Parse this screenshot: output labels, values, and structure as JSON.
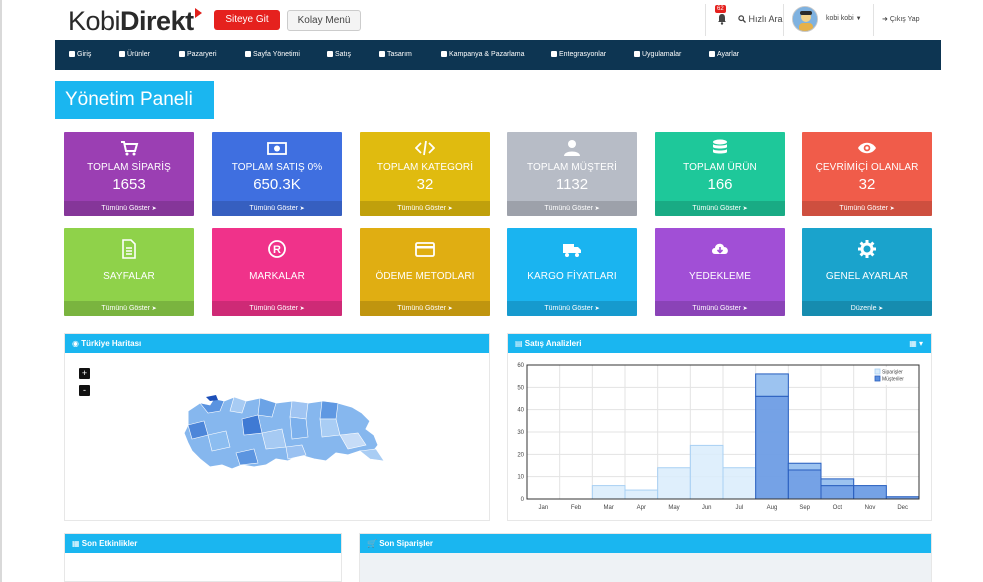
{
  "header": {
    "logo_part1": "Kobi",
    "logo_part2": "Direkt",
    "site_button": "Siteye Git",
    "easy_menu_button": "Kolay Menü",
    "notification_count": "62",
    "quick_search": "Hızlı Ara",
    "user_name": "kobi kobi",
    "logout": "Çıkış Yap"
  },
  "nav": {
    "items": [
      {
        "label": "Giriş",
        "icon": "home-icon"
      },
      {
        "label": "Ürünler",
        "icon": "tag-icon"
      },
      {
        "label": "Pazaryeri",
        "icon": "tags-icon"
      },
      {
        "label": "Sayfa Yönetimi",
        "icon": "book-icon"
      },
      {
        "label": "Satış",
        "icon": "cart-icon"
      },
      {
        "label": "Tasarım",
        "icon": "desktop-icon"
      },
      {
        "label": "Kampanya & Pazarlama",
        "icon": "share-icon"
      },
      {
        "label": "Entegrasyonlar",
        "icon": "paper-plane-icon"
      },
      {
        "label": "Uygulamalar",
        "icon": "puzzle-icon"
      },
      {
        "label": "Ayarlar",
        "icon": "gear-icon"
      }
    ]
  },
  "page_title": "Yönetim Paneli",
  "tiles_row1": [
    {
      "label": "TOPLAM SİPARİŞ",
      "value": "1653",
      "footer": "Tümünü Göster",
      "color": "#9b3fb3",
      "icon": "cart-icon"
    },
    {
      "label": "TOPLAM SATIŞ 0%",
      "value": "650.3K",
      "footer": "Tümünü Göster",
      "color": "#3f6fe0",
      "icon": "money-icon"
    },
    {
      "label": "TOPLAM KATEGORİ",
      "value": "32",
      "footer": "Tümünü Göster",
      "color": "#e0bb0f",
      "icon": "code-icon"
    },
    {
      "label": "TOPLAM MÜŞTERİ",
      "value": "1132",
      "footer": "Tümünü Göster",
      "color": "#b7bcc6",
      "icon": "user-icon"
    },
    {
      "label": "TOPLAM ÜRÜN",
      "value": "166",
      "footer": "Tümünü Göster",
      "color": "#1ec89a",
      "icon": "database-icon"
    },
    {
      "label": "ÇEVRİMİÇİ OLANLAR",
      "value": "32",
      "footer": "Tümünü Göster",
      "color": "#f05c4a",
      "icon": "eye-icon"
    }
  ],
  "tiles_row2": [
    {
      "label": "SAYFALAR",
      "footer": "Tümünü Göster",
      "color": "#8fd24a",
      "icon": "file-icon"
    },
    {
      "label": "MARKALAR",
      "footer": "Tümünü Göster",
      "color": "#f0328a",
      "icon": "registered-icon"
    },
    {
      "label": "ÖDEME METODLARI",
      "footer": "Tümünü Göster",
      "color": "#e0ae12",
      "icon": "credit-card-icon"
    },
    {
      "label": "KARGO FİYATLARI",
      "footer": "Tümünü Göster",
      "color": "#1ab4f0",
      "icon": "truck-icon"
    },
    {
      "label": "YEDEKLEME",
      "footer": "Tümünü Göster",
      "color": "#a14fd6",
      "icon": "cloud-download-icon"
    },
    {
      "label": "GENEL AYARLAR",
      "footer": "Düzenle",
      "color": "#1aa3cc",
      "icon": "gear-icon"
    }
  ],
  "map_panel": {
    "title": "Türkiye Haritası",
    "zoom_in": "+",
    "zoom_out": "-"
  },
  "sales_panel": {
    "title": "Satış Analizleri"
  },
  "activities_panel": {
    "title": "Son Etkinlikler"
  },
  "orders_panel": {
    "title": "Son Siparişler"
  },
  "chart_data": {
    "type": "bar",
    "categories": [
      "Jan",
      "Feb",
      "Mar",
      "Apr",
      "May",
      "Jun",
      "Jul",
      "Aug",
      "Sep",
      "Oct",
      "Nov",
      "Dec"
    ],
    "series": [
      {
        "name": "Siparişler",
        "values": [
          0,
          0,
          6,
          4,
          14,
          24,
          14,
          56,
          16,
          9,
          6,
          1
        ]
      },
      {
        "name": "Müşteriler",
        "values": [
          0,
          0,
          0,
          0,
          0,
          0,
          0,
          46,
          13,
          6,
          6,
          1
        ]
      }
    ],
    "ylim": [
      0,
      60
    ],
    "yticks": [
      0,
      10,
      20,
      30,
      40,
      50,
      60
    ],
    "legend": "top-right",
    "grid": true
  }
}
